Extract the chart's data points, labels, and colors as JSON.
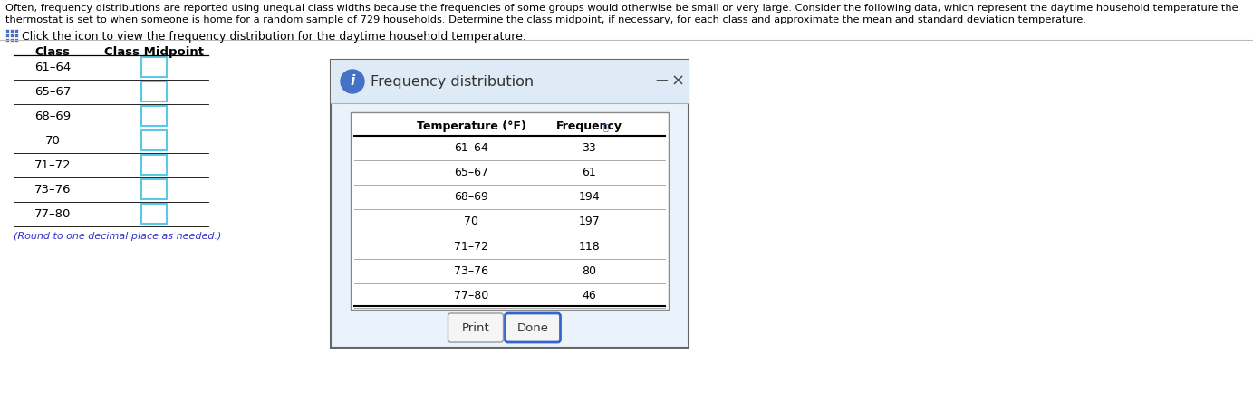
{
  "header_line1": "Often, frequency distributions are reported using unequal class widths because the frequencies of some groups would otherwise be small or very large. Consider the following data, which represent the daytime household temperature the",
  "header_line2": "thermostat is set to when someone is home for a random sample of 729 households. Determine the class midpoint, if necessary, for each class and approximate the mean and standard deviation temperature.",
  "click_text": "Click the icon to view the frequency distribution for the daytime household temperature.",
  "table_col1_header": "Class",
  "table_col2_header": "Class Midpoint",
  "classes": [
    "61–64",
    "65–67",
    "68–69",
    "70",
    "71–72",
    "73–76",
    "77–80"
  ],
  "round_note": "(Round to one decimal place as needed.)",
  "popup_title": "Frequency distribution",
  "popup_col1_header": "Temperature (°F)",
  "popup_col2_header": "Frequency",
  "popup_classes": [
    "61–64",
    "65–67",
    "68–69",
    "70",
    "71–72",
    "73–76",
    "77–80"
  ],
  "popup_frequencies": [
    33,
    61,
    194,
    197,
    118,
    80,
    46
  ],
  "print_button": "Print",
  "done_button": "Done",
  "bg_color": "#ffffff",
  "popup_header_bg": "#deeaf5",
  "popup_body_bg": "#eaf2fb",
  "input_box_color": "#ffffff",
  "input_box_border": "#5bc8e8",
  "header_fontsize": 8.2,
  "click_fontsize": 9.0,
  "body_fontsize": 9.5,
  "popup_title_fontsize": 11.5,
  "popup_data_fontsize": 9.0
}
